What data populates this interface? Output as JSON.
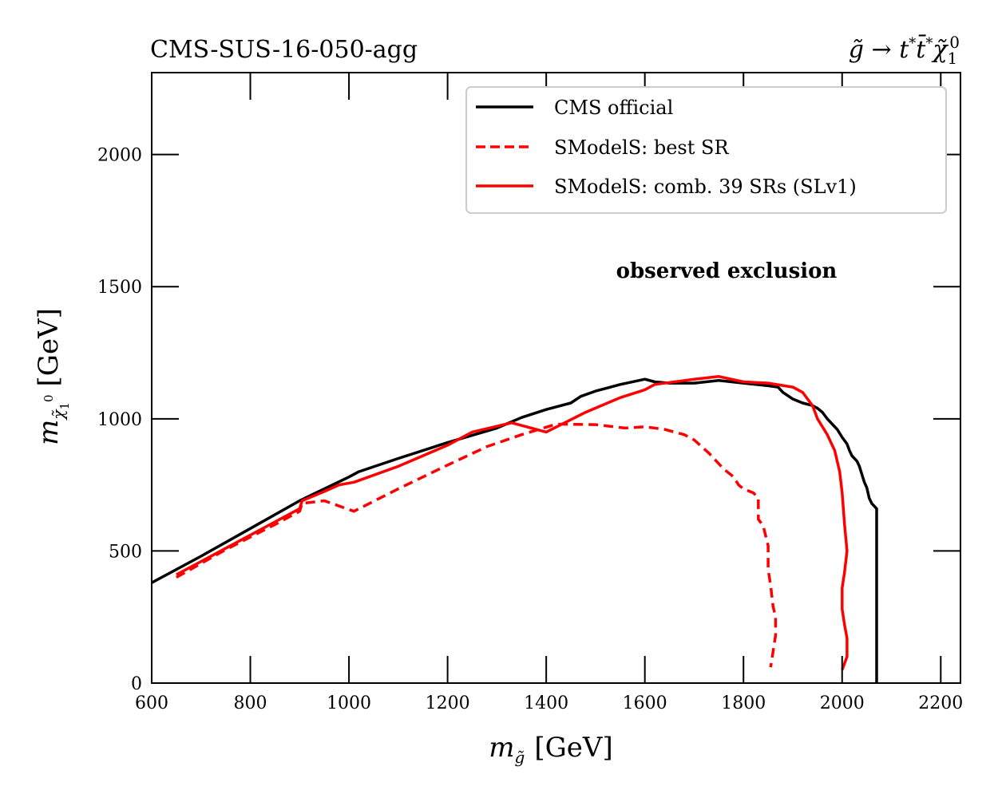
{
  "titles": {
    "left": "CMS-SUS-16-050-agg",
    "right": "g̃ → t* t̄* χ̃₁⁰"
  },
  "annotation": "observed exclusion",
  "chart_data": {
    "type": "line",
    "xlabel": "m_g̃ [GeV]",
    "ylabel": "m_χ̃₁⁰ [GeV]",
    "xlim": [
      600,
      2240
    ],
    "ylim": [
      0,
      2310
    ],
    "x_ticks": [
      600,
      800,
      1000,
      1200,
      1400,
      1600,
      1800,
      2000,
      2200
    ],
    "y_ticks": [
      0,
      500,
      1000,
      1500,
      2000
    ],
    "grid": false,
    "legend_position": "top-right",
    "series": [
      {
        "name": "CMS official",
        "color": "#000000",
        "dash": "solid",
        "points": [
          [
            600,
            380
          ],
          [
            700,
            480
          ],
          [
            800,
            585
          ],
          [
            900,
            690
          ],
          [
            1000,
            780
          ],
          [
            1020,
            800
          ],
          [
            1100,
            850
          ],
          [
            1200,
            910
          ],
          [
            1300,
            965
          ],
          [
            1350,
            1005
          ],
          [
            1400,
            1035
          ],
          [
            1450,
            1060
          ],
          [
            1470,
            1085
          ],
          [
            1500,
            1105
          ],
          [
            1550,
            1130
          ],
          [
            1600,
            1150
          ],
          [
            1620,
            1140
          ],
          [
            1650,
            1135
          ],
          [
            1700,
            1135
          ],
          [
            1750,
            1145
          ],
          [
            1800,
            1135
          ],
          [
            1850,
            1125
          ],
          [
            1870,
            1120
          ],
          [
            1880,
            1100
          ],
          [
            1900,
            1075
          ],
          [
            1920,
            1060
          ],
          [
            1940,
            1050
          ],
          [
            1950,
            1040
          ],
          [
            1960,
            1025
          ],
          [
            1970,
            1000
          ],
          [
            1980,
            980
          ],
          [
            1990,
            960
          ],
          [
            2000,
            930
          ],
          [
            2010,
            905
          ],
          [
            2015,
            880
          ],
          [
            2020,
            860
          ],
          [
            2030,
            840
          ],
          [
            2035,
            820
          ],
          [
            2040,
            790
          ],
          [
            2045,
            760
          ],
          [
            2050,
            740
          ],
          [
            2055,
            700
          ],
          [
            2060,
            680
          ],
          [
            2070,
            660
          ],
          [
            2070,
            620
          ],
          [
            2070,
            0
          ]
        ]
      },
      {
        "name": "SModelS: best SR",
        "color": "#ff0000",
        "dash": "dashed",
        "points": [
          [
            650,
            400
          ],
          [
            750,
            505
          ],
          [
            850,
            600
          ],
          [
            900,
            650
          ],
          [
            905,
            680
          ],
          [
            950,
            690
          ],
          [
            1010,
            650
          ],
          [
            1100,
            735
          ],
          [
            1200,
            825
          ],
          [
            1280,
            895
          ],
          [
            1350,
            940
          ],
          [
            1420,
            980
          ],
          [
            1500,
            978
          ],
          [
            1560,
            965
          ],
          [
            1600,
            970
          ],
          [
            1640,
            960
          ],
          [
            1680,
            940
          ],
          [
            1700,
            920
          ],
          [
            1730,
            870
          ],
          [
            1760,
            810
          ],
          [
            1780,
            780
          ],
          [
            1790,
            750
          ],
          [
            1800,
            735
          ],
          [
            1820,
            720
          ],
          [
            1830,
            700
          ],
          [
            1830,
            620
          ],
          [
            1840,
            595
          ],
          [
            1850,
            520
          ],
          [
            1850,
            430
          ],
          [
            1855,
            370
          ],
          [
            1860,
            290
          ],
          [
            1865,
            250
          ],
          [
            1865,
            180
          ],
          [
            1860,
            120
          ],
          [
            1855,
            60
          ]
        ]
      },
      {
        "name": "SModelS: comb. 39 SRs (SLv1)",
        "color": "#ff0000",
        "dash": "solid",
        "points": [
          [
            650,
            410
          ],
          [
            750,
            510
          ],
          [
            850,
            610
          ],
          [
            900,
            660
          ],
          [
            905,
            690
          ],
          [
            950,
            725
          ],
          [
            980,
            750
          ],
          [
            1010,
            760
          ],
          [
            1100,
            820
          ],
          [
            1200,
            900
          ],
          [
            1250,
            950
          ],
          [
            1330,
            985
          ],
          [
            1400,
            950
          ],
          [
            1480,
            1025
          ],
          [
            1550,
            1080
          ],
          [
            1600,
            1110
          ],
          [
            1620,
            1130
          ],
          [
            1700,
            1150
          ],
          [
            1750,
            1160
          ],
          [
            1800,
            1140
          ],
          [
            1850,
            1135
          ],
          [
            1900,
            1120
          ],
          [
            1920,
            1100
          ],
          [
            1940,
            1050
          ],
          [
            1950,
            1000
          ],
          [
            1970,
            940
          ],
          [
            1985,
            880
          ],
          [
            1995,
            800
          ],
          [
            2000,
            720
          ],
          [
            2005,
            600
          ],
          [
            2010,
            500
          ],
          [
            2005,
            420
          ],
          [
            2000,
            360
          ],
          [
            2000,
            280
          ],
          [
            2005,
            220
          ],
          [
            2010,
            170
          ],
          [
            2010,
            100
          ],
          [
            2000,
            50
          ]
        ]
      }
    ]
  }
}
